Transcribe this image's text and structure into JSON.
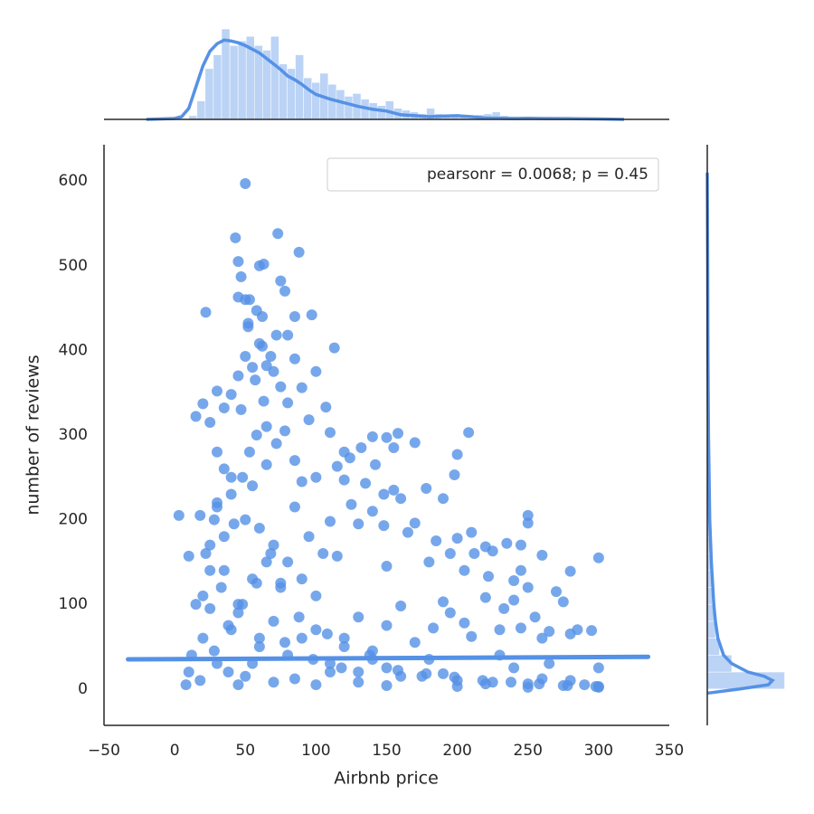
{
  "chart_data": [
    {
      "type": "scatter",
      "xlabel": "Airbnb price",
      "ylabel": "number of reviews",
      "annotation": "pearsonr = 0.0068; p = 0.45",
      "color": "#5591e6",
      "xlim": [
        -50,
        350
      ],
      "ylim": [
        -43,
        643
      ],
      "xticks": [
        {
          "value": -50,
          "label": "−50"
        },
        0,
        50,
        100,
        150,
        200,
        250,
        300,
        350
      ],
      "yticks": [
        0,
        100,
        200,
        300,
        400,
        500,
        600
      ],
      "x": [
        50,
        73,
        43,
        88,
        45,
        60,
        63,
        47,
        75,
        78,
        45,
        50,
        53,
        22,
        58,
        62,
        85,
        97,
        52,
        52,
        113,
        60,
        62,
        72,
        80,
        50,
        68,
        85,
        65,
        55,
        100,
        45,
        70,
        57,
        75,
        90,
        30,
        40,
        63,
        80,
        107,
        20,
        47,
        35,
        95,
        15,
        25,
        110,
        158,
        140,
        208,
        150,
        170,
        120,
        124,
        132,
        155,
        200,
        115,
        142,
        100,
        120,
        155,
        148,
        178,
        135,
        160,
        198,
        190,
        3,
        18,
        30,
        125,
        140,
        110,
        130,
        148,
        170,
        165,
        210,
        250,
        250,
        235,
        245,
        220,
        200,
        185,
        195,
        225,
        212,
        260,
        300,
        10,
        115,
        150,
        180,
        205,
        245,
        280,
        222,
        240,
        270,
        250,
        275,
        240,
        220,
        190,
        160,
        195,
        233,
        255,
        205,
        230,
        265,
        285,
        295,
        245,
        260,
        280,
        183,
        170,
        210,
        150,
        130,
        100,
        90,
        80,
        70,
        60,
        40,
        35,
        30,
        55,
        65,
        85,
        95,
        105,
        75,
        45,
        25,
        20,
        15,
        12,
        8,
        10,
        30,
        50,
        70,
        100,
        150,
        200,
        250,
        300,
        280,
        300,
        265,
        230,
        180,
        140,
        120,
        60,
        40,
        22,
        28,
        35,
        42,
        48,
        53,
        58,
        65,
        72,
        78,
        85,
        90,
        25,
        33,
        38,
        18,
        45,
        55,
        85,
        110,
        130,
        160,
        190,
        220,
        240,
        260,
        290,
        20,
        25,
        30,
        35,
        40,
        45,
        50,
        55,
        60,
        65,
        70,
        75,
        80,
        90,
        100,
        110,
        120,
        130,
        140,
        150,
        175,
        200,
        225,
        250,
        275,
        300,
        28,
        38,
        48,
        58,
        68,
        78,
        88,
        98,
        108,
        118,
        138,
        158,
        178,
        198,
        218,
        238,
        258,
        278,
        298
      ],
      "y": [
        597,
        538,
        533,
        516,
        505,
        500,
        502,
        487,
        482,
        470,
        463,
        460,
        460,
        445,
        447,
        440,
        440,
        442,
        432,
        428,
        403,
        408,
        405,
        418,
        418,
        393,
        393,
        390,
        382,
        380,
        375,
        370,
        375,
        365,
        357,
        356,
        352,
        348,
        340,
        338,
        333,
        337,
        330,
        332,
        318,
        322,
        315,
        303,
        302,
        298,
        303,
        297,
        291,
        280,
        273,
        285,
        285,
        277,
        263,
        265,
        250,
        247,
        235,
        230,
        237,
        243,
        225,
        253,
        225,
        205,
        205,
        215,
        218,
        210,
        198,
        195,
        193,
        196,
        185,
        185,
        205,
        196,
        172,
        170,
        168,
        178,
        175,
        160,
        163,
        160,
        158,
        155,
        157,
        157,
        145,
        150,
        140,
        140,
        139,
        133,
        128,
        115,
        120,
        103,
        105,
        108,
        103,
        98,
        90,
        95,
        85,
        78,
        70,
        68,
        70,
        69,
        72,
        60,
        65,
        72,
        55,
        62,
        75,
        85,
        110,
        130,
        150,
        170,
        190,
        230,
        260,
        280,
        240,
        265,
        215,
        180,
        160,
        125,
        100,
        140,
        60,
        100,
        40,
        5,
        20,
        30,
        15,
        8,
        5,
        4,
        3,
        2,
        2,
        10,
        25,
        30,
        40,
        35,
        45,
        60,
        50,
        70,
        160,
        200,
        180,
        195,
        250,
        280,
        300,
        310,
        290,
        305,
        270,
        245,
        95,
        120,
        20,
        10,
        5,
        30,
        12,
        20,
        8,
        15,
        18,
        6,
        25,
        12,
        5,
        110,
        170,
        220,
        140,
        250,
        90,
        200,
        130,
        60,
        150,
        80,
        120,
        40,
        60,
        70,
        30,
        50,
        20,
        35,
        25,
        15,
        10,
        8,
        6,
        4,
        3,
        45,
        75,
        100,
        125,
        160,
        55,
        85,
        35,
        65,
        25,
        40,
        22,
        18,
        14,
        10,
        8,
        6,
        4,
        3
      ],
      "regression": {
        "x": [
          -33,
          335
        ],
        "y": [
          35,
          38
        ]
      }
    },
    {
      "type": "histogram",
      "color": "#5591e6",
      "xlim": [
        -50,
        350
      ],
      "ylim": [
        0,
        100
      ],
      "bins": [
        10,
        15.8,
        21.6,
        27.4,
        33.2,
        39,
        44.8,
        50.6,
        56.4,
        62.2,
        68,
        73.8,
        79.6,
        85.4,
        91.2,
        97,
        102.8,
        108.6,
        114.4,
        120.2,
        126,
        131.8,
        137.6,
        143.4,
        149.2,
        155,
        160.8,
        166.6,
        172.4,
        178.2,
        184,
        189.8,
        195.6,
        201.4,
        207.2,
        213,
        218.8,
        224.6,
        230.4,
        236.2,
        242,
        247.8,
        253.6,
        259.4,
        265.2,
        271,
        276.8,
        282.6,
        288.4,
        294.2,
        300
      ],
      "values": [
        4,
        20,
        55,
        70,
        98,
        80,
        85,
        90,
        80,
        75,
        90,
        60,
        55,
        70,
        45,
        40,
        50,
        38,
        32,
        25,
        28,
        22,
        18,
        15,
        20,
        12,
        10,
        8,
        6,
        12,
        6,
        5,
        4,
        3,
        4,
        5,
        6,
        8,
        4,
        3,
        2,
        2,
        1.5,
        2,
        2,
        1,
        1,
        1,
        1,
        1
      ],
      "kde": {
        "x": [
          -20,
          -10,
          0,
          5,
          10,
          15,
          20,
          25,
          30,
          35,
          40,
          45,
          50,
          55,
          60,
          65,
          70,
          75,
          80,
          85,
          90,
          95,
          100,
          110,
          120,
          130,
          140,
          150,
          160,
          170,
          180,
          190,
          200,
          210,
          220,
          240,
          250,
          260,
          280,
          300,
          318
        ],
        "y": [
          0,
          0.5,
          1,
          3,
          12,
          35,
          58,
          74,
          82,
          86,
          85,
          83,
          80,
          76,
          72,
          66,
          60,
          54,
          47,
          43,
          38,
          32,
          27,
          22,
          18,
          14,
          11,
          9,
          5,
          4,
          3,
          3.5,
          4,
          3,
          1.5,
          1,
          1.2,
          1,
          0.8,
          0.5,
          0
        ]
      }
    },
    {
      "type": "histogram",
      "orientation": "horizontal",
      "color": "#5591e6",
      "xlim": [
        0,
        100
      ],
      "ylim": [
        -43,
        643
      ],
      "bins": [
        0,
        20,
        40,
        60,
        80,
        100,
        120,
        140,
        160,
        180,
        200,
        220,
        240,
        260,
        280,
        300,
        320,
        340,
        360,
        380,
        400,
        420,
        440,
        460,
        480,
        500,
        520,
        540,
        560,
        580,
        600
      ],
      "values": [
        95,
        30,
        15,
        10,
        8,
        6,
        5,
        4,
        3,
        2.5,
        2,
        1.5,
        1.2,
        1,
        1,
        0.8,
        0.6,
        0.5,
        0.4,
        0.3,
        0.3,
        0.2,
        0.2,
        0.15,
        0.1,
        0.1,
        0.08,
        0.05,
        0.05,
        0.05
      ],
      "kde": {
        "y": [
          -5,
          0,
          5,
          10,
          15,
          20,
          30,
          40,
          60,
          80,
          100,
          150,
          200,
          300,
          400,
          500,
          610
        ],
        "x": [
          0,
          40,
          75,
          80,
          70,
          50,
          30,
          20,
          13,
          10,
          8,
          5,
          3,
          1.5,
          0.8,
          0.5,
          0
        ]
      }
    }
  ]
}
